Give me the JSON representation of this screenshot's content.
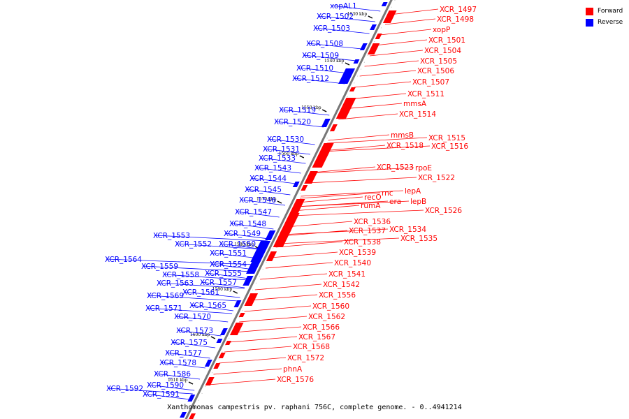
{
  "legend": {
    "forward": {
      "label": "Forward",
      "color": "#ff0000"
    },
    "reverse": {
      "label": "Reverse",
      "color": "#0000ff"
    }
  },
  "caption": "Xanthomonas campestris pv. raphani 756C, complete genome. - 0..4941214",
  "backbone_color": "#777777",
  "scale_ticks": [
    "1530 kbp",
    "1540 kbp",
    "1550 kbp",
    "1560 kbp",
    "1570 kbp",
    "1580 kbp",
    "1590 kbp",
    "1600 kbp",
    "1610 kbp"
  ],
  "reverse_genes": [
    "xopAL1",
    "XCR_1502",
    "XCR_1503",
    "XCR_1508",
    "XCR_1509",
    "XCR_1510",
    "XCR_1512",
    "XCR_1519",
    "XCR_1520",
    "XCR_1530",
    "XCR_1531",
    "XCR_1533",
    "XCR_1543",
    "XCR_1544",
    "XCR_1545",
    "XCR_1546",
    "XCR_1547",
    "XCR_1548",
    "XCR_1549",
    "XCR_1553",
    "XCR_1550",
    "XCR_1552",
    "XCR_1551",
    "XCR_1554",
    "XCR_1564",
    "XCR_1559",
    "XCR_1555",
    "XCR_1558",
    "XCR_1557",
    "XCR_1563",
    "XCR_1561",
    "XCR_1569",
    "XCR_1565",
    "XCR_1571",
    "XCR_1570",
    "XCR_1573",
    "XCR_1575",
    "XCR_1577",
    "XCR_1578",
    "XCR_1586",
    "XCR_1590",
    "XCR_1592",
    "XCR_1591"
  ],
  "forward_genes": [
    "XCR_1497",
    "XCR_1498",
    "xopP",
    "XCR_1501",
    "XCR_1504",
    "XCR_1505",
    "XCR_1506",
    "XCR_1507",
    "XCR_1511",
    "mmsA",
    "XCR_1514",
    "mmsB",
    "XCR_1515",
    "XCR_1518",
    "XCR_1516",
    "XCR_1523",
    "rpoE",
    "XCR_1522",
    "rnc",
    "lepA",
    "recO",
    "era",
    "lepB",
    "rumA",
    "XCR_1526",
    "XCR_1536",
    "XCR_1534",
    "XCR_1537",
    "XCR_1535",
    "XCR_1538",
    "XCR_1539",
    "XCR_1540",
    "XCR_1541",
    "XCR_1542",
    "XCR_1556",
    "XCR_1560",
    "XCR_1562",
    "XCR_1566",
    "XCR_1567",
    "XCR_1568",
    "XCR_1572",
    "phnA",
    "XCR_1576"
  ]
}
